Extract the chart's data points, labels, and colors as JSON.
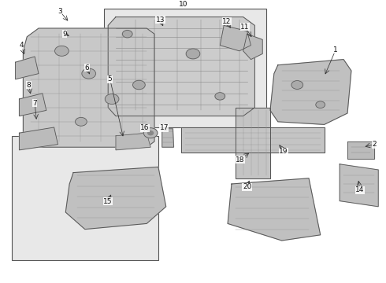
{
  "bg_color": "#ffffff",
  "diagram_bg": "#e8e8e8",
  "line_color": "#555555",
  "part_color": "#888888",
  "text_color": "#111111",
  "title": "",
  "figsize": [
    4.9,
    3.6
  ],
  "dpi": 100
}
